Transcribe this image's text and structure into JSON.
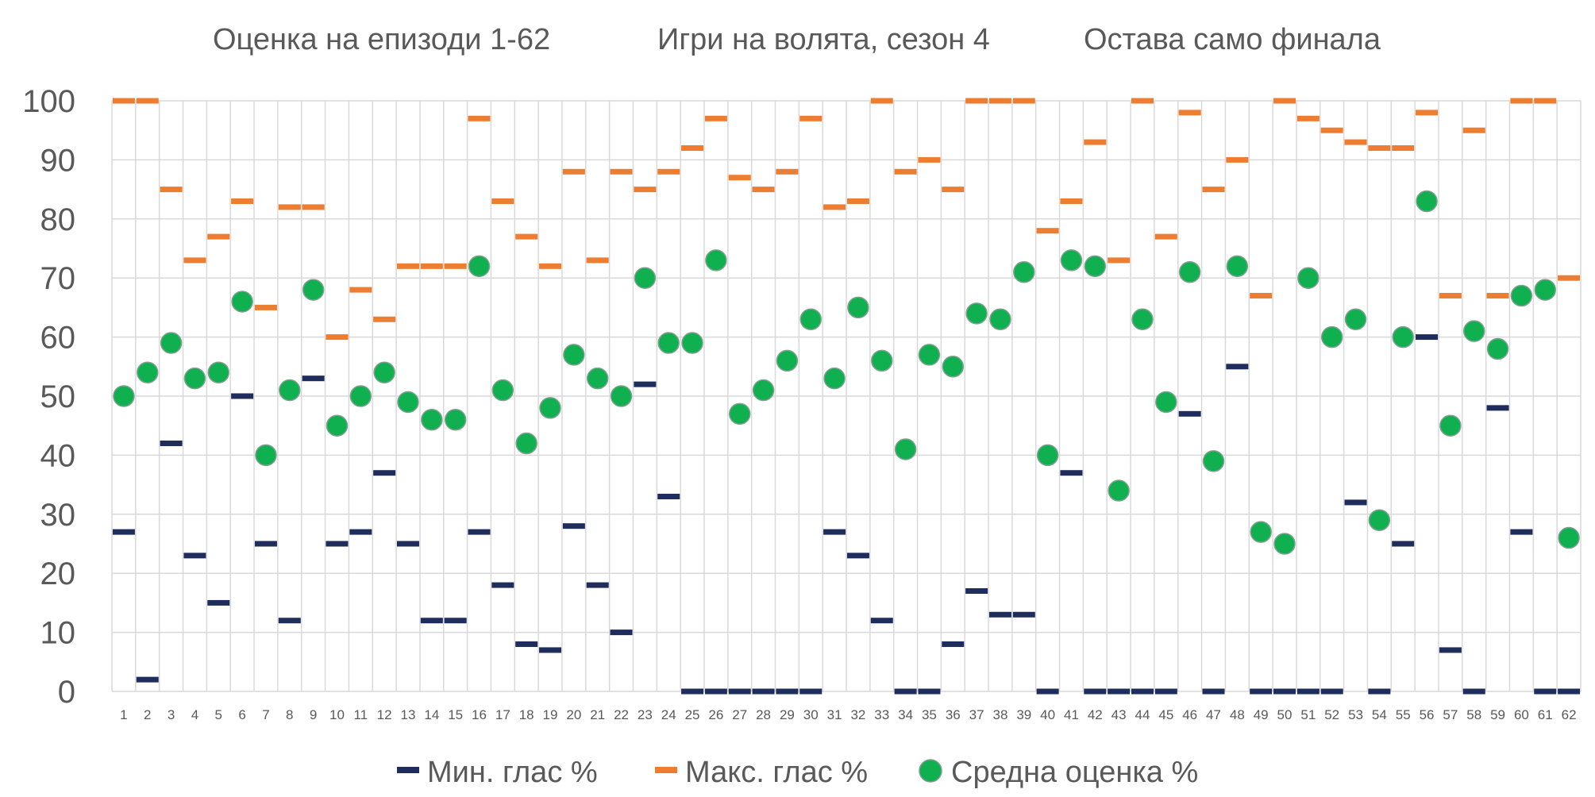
{
  "chart_data": {
    "type": "scatter",
    "title_parts": [
      "Оценка на епизоди 1-62",
      "Игри на волята, сезон 4",
      "Остава само финала"
    ],
    "x": [
      1,
      2,
      3,
      4,
      5,
      6,
      7,
      8,
      9,
      10,
      11,
      12,
      13,
      14,
      15,
      16,
      17,
      18,
      19,
      20,
      21,
      22,
      23,
      24,
      25,
      26,
      27,
      28,
      29,
      30,
      31,
      32,
      33,
      34,
      35,
      36,
      37,
      38,
      39,
      40,
      41,
      42,
      43,
      44,
      45,
      46,
      47,
      48,
      49,
      50,
      51,
      52,
      53,
      54,
      55,
      56,
      57,
      58,
      59,
      60,
      61,
      62
    ],
    "ylim": [
      0,
      100
    ],
    "yticks": [
      0,
      10,
      20,
      30,
      40,
      50,
      60,
      70,
      80,
      90,
      100
    ],
    "grid": true,
    "legend_position": "bottom",
    "series": [
      {
        "name": "Мин. глас %",
        "marker": "dash",
        "color": "#1F2D5C",
        "values": [
          27,
          2,
          42,
          23,
          15,
          50,
          25,
          12,
          53,
          25,
          27,
          37,
          25,
          12,
          12,
          27,
          18,
          8,
          7,
          28,
          18,
          10,
          52,
          33,
          0,
          0,
          0,
          0,
          0,
          0,
          27,
          23,
          12,
          0,
          0,
          8,
          17,
          13,
          13,
          0,
          37,
          0,
          0,
          0,
          0,
          47,
          0,
          55,
          0,
          0,
          0,
          0,
          32,
          0,
          25,
          60,
          7,
          0,
          48,
          27,
          0,
          0
        ]
      },
      {
        "name": "Макс. глас %",
        "marker": "dash",
        "color": "#ED7D31",
        "values": [
          100,
          100,
          85,
          73,
          77,
          83,
          65,
          82,
          82,
          60,
          68,
          63,
          72,
          72,
          72,
          97,
          83,
          77,
          72,
          88,
          73,
          88,
          85,
          88,
          92,
          97,
          87,
          85,
          88,
          97,
          82,
          83,
          100,
          88,
          90,
          85,
          100,
          100,
          100,
          78,
          83,
          93,
          73,
          100,
          77,
          98,
          85,
          90,
          67,
          100,
          97,
          95,
          93,
          92,
          92,
          98,
          67,
          95,
          67,
          100,
          100,
          70
        ]
      },
      {
        "name": "Средна оценка %",
        "marker": "circle",
        "color": "#10B050",
        "values": [
          50,
          54,
          59,
          53,
          54,
          66,
          40,
          51,
          68,
          45,
          50,
          54,
          49,
          46,
          46,
          72,
          51,
          42,
          48,
          57,
          53,
          50,
          70,
          59,
          59,
          73,
          47,
          51,
          56,
          63,
          53,
          65,
          56,
          41,
          57,
          55,
          64,
          63,
          71,
          40,
          73,
          72,
          34,
          63,
          49,
          71,
          39,
          72,
          27,
          25,
          70,
          60,
          63,
          29,
          60,
          83,
          45,
          61,
          58,
          67,
          68,
          26
        ]
      }
    ]
  }
}
